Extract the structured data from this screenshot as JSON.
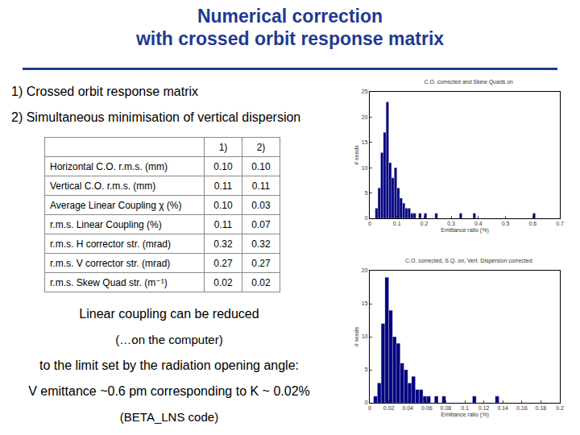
{
  "title": [
    "Numerical correction",
    "with crossed orbit response matrix"
  ],
  "items": [
    "1) Crossed orbit response matrix",
    "2) Simultaneous minimisation of vertical dispersion"
  ],
  "table": {
    "header": [
      "1)",
      "2)"
    ],
    "rows": [
      [
        "Horizontal C.O. r.m.s. (mm)",
        "0.10",
        "0.10"
      ],
      [
        "Vertical C.O. r.m.s. (mm)",
        "0.11",
        "0.11"
      ],
      [
        "Average Linear Coupling χ (%)",
        "0.10",
        "0.03"
      ],
      [
        "r.m.s. Linear Coupling (%)",
        "0.11",
        "0.07"
      ],
      [
        "r.m.s. H corrector str. (mrad)",
        "0.32",
        "0.32"
      ],
      [
        "r.m.s. V corrector str. (mrad)",
        "0.27",
        "0.27"
      ],
      [
        "r.m.s. Skew Quad str. (m⁻¹)",
        "0.02",
        "0.02"
      ]
    ]
  },
  "notes": [
    "Linear coupling can be reduced",
    "(…on the computer)",
    "to the limit set by the radiation opening angle:",
    "V emittance ~0.6 pm corresponding to K ~ 0.02%",
    "(BETA_LNS code)"
  ],
  "chart_data": [
    {
      "type": "histogram",
      "title": "C.O. corrected and Skew Quads on",
      "xlabel": "Emittance ratio (%)",
      "ylabel": "# seeds",
      "color": "#000080",
      "bins": [
        0,
        0.01,
        0.02,
        0.03,
        0.04,
        0.05,
        0.06,
        0.07,
        0.08,
        0.09,
        0.1,
        0.11,
        0.12,
        0.13,
        0.14,
        0.15,
        0.16,
        0.17,
        0.18,
        0.19,
        0.2,
        0.21,
        0.22,
        0.23,
        0.24,
        0.25,
        0.26,
        0.27,
        0.28,
        0.29,
        0.3,
        0.31,
        0.32,
        0.33,
        0.34,
        0.35,
        0.36,
        0.37,
        0.38,
        0.39,
        0.4,
        0.41,
        0.42,
        0.43,
        0.44,
        0.45,
        0.46,
        0.47,
        0.48,
        0.49,
        0.5,
        0.51,
        0.52,
        0.53,
        0.54,
        0.55,
        0.56,
        0.57,
        0.58,
        0.59,
        0.6,
        0.61,
        0.62,
        0.63,
        0.64,
        0.65,
        0.66,
        0.67,
        0.68,
        0.69,
        0.7
      ],
      "counts": [
        0,
        0,
        2,
        6,
        13,
        17,
        23,
        11,
        8,
        10,
        6,
        4,
        3,
        2,
        2,
        1,
        1,
        0,
        1,
        0,
        1,
        0,
        0,
        0,
        1,
        0,
        0,
        0,
        0,
        0,
        0,
        0,
        0,
        1,
        0,
        0,
        0,
        0,
        1,
        0,
        0,
        0,
        0,
        0,
        0,
        0,
        0,
        0,
        0,
        0,
        0,
        0,
        0,
        0,
        0,
        0,
        0,
        0,
        0,
        0,
        1,
        0,
        0,
        0,
        0,
        0,
        0,
        0,
        0,
        0
      ],
      "xlim": [
        0,
        0.7
      ],
      "xticks": [
        0,
        0.1,
        0.2,
        0.3,
        0.4,
        0.5,
        0.6,
        0.7
      ],
      "ylim": [
        0,
        25
      ],
      "yticks": [
        0,
        5,
        10,
        15,
        20,
        25
      ]
    },
    {
      "type": "histogram",
      "title": "C.O. corrected, S.Q. on, Vert. Dispersion corrected",
      "xlabel": "Emittance ratio (%)",
      "ylabel": "# seeds",
      "color": "#000080",
      "bins": [
        0,
        0.004,
        0.008,
        0.012,
        0.016,
        0.02,
        0.024,
        0.028,
        0.032,
        0.036,
        0.04,
        0.044,
        0.048,
        0.052,
        0.056,
        0.06,
        0.064,
        0.068,
        0.072,
        0.076,
        0.08,
        0.084,
        0.088,
        0.092,
        0.096,
        0.1,
        0.104,
        0.108,
        0.112,
        0.116,
        0.12,
        0.124,
        0.128,
        0.132,
        0.136,
        0.14,
        0.144,
        0.148,
        0.152,
        0.156,
        0.16,
        0.164,
        0.168,
        0.172,
        0.176,
        0.18,
        0.184,
        0.188,
        0.192,
        0.196,
        0.2
      ],
      "counts": [
        0,
        1,
        3,
        12,
        19,
        14,
        10,
        9,
        6,
        5,
        3,
        4,
        2,
        2,
        1,
        1,
        0,
        1,
        0,
        1,
        0,
        0,
        0,
        0,
        0,
        0,
        0,
        1,
        0,
        0,
        0,
        0,
        0,
        1,
        0,
        0,
        0,
        0,
        0,
        0,
        0,
        0,
        0,
        0,
        0,
        0,
        0,
        0,
        0,
        0
      ],
      "xlim": [
        0,
        0.2
      ],
      "xticks": [
        0,
        0.02,
        0.04,
        0.06,
        0.08,
        0.1,
        0.12,
        0.14,
        0.16,
        0.18,
        0.2
      ],
      "ylim": [
        0,
        20
      ],
      "yticks": [
        0,
        5,
        10,
        15,
        20
      ]
    }
  ]
}
